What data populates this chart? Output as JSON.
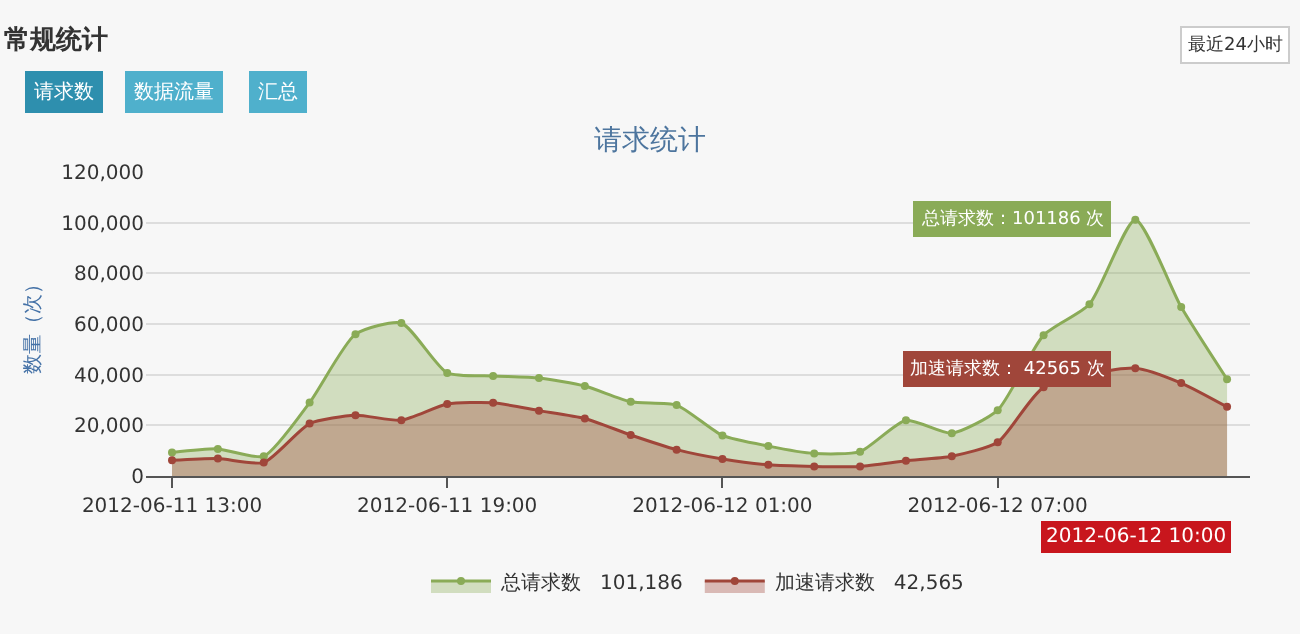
{
  "chart_data": {
    "type": "area",
    "title": "请求统计",
    "ylabel": "数量（次）",
    "x": [
      "2012-06-11T13:00",
      "2012-06-11T14:00",
      "2012-06-11T15:00",
      "2012-06-11T16:00",
      "2012-06-11T17:00",
      "2012-06-11T18:00",
      "2012-06-11T19:00",
      "2012-06-11T20:00",
      "2012-06-11T21:00",
      "2012-06-11T22:00",
      "2012-06-11T23:00",
      "2012-06-12T00:00",
      "2012-06-12T01:00",
      "2012-06-12T02:00",
      "2012-06-12T03:00",
      "2012-06-12T04:00",
      "2012-06-12T05:00",
      "2012-06-12T06:00",
      "2012-06-12T07:00",
      "2012-06-12T08:00",
      "2012-06-12T09:00",
      "2012-06-12T10:00",
      "2012-06-12T11:00",
      "2012-06-12T12:00"
    ],
    "series": [
      {
        "name": "总请求数   101,186",
        "color": "#8aab57",
        "values": [
          9300,
          10700,
          7800,
          29000,
          56000,
          60400,
          40700,
          39500,
          38700,
          35500,
          29300,
          28000,
          16000,
          11800,
          8900,
          9600,
          22000,
          16900,
          26000,
          55600,
          67800,
          101186,
          66700,
          38200
        ]
      },
      {
        "name": "加速请求数   42,565",
        "color": "#a0463a",
        "values": [
          6200,
          6900,
          5300,
          20700,
          24000,
          22000,
          28400,
          28900,
          25800,
          22700,
          16200,
          10400,
          6700,
          4400,
          3800,
          3800,
          6000,
          7800,
          13300,
          35000,
          null,
          42565,
          36700,
          27300
        ]
      }
    ],
    "xlim": [
      "2012-06-11T12:26",
      "2012-06-12T12:30"
    ],
    "xticks": [
      {
        "value": "2012-06-11T13:00",
        "label": "2012-06-11 13:00"
      },
      {
        "value": "2012-06-11T19:00",
        "label": "2012-06-11 19:00"
      },
      {
        "value": "2012-06-12T01:00",
        "label": "2012-06-12 01:00"
      },
      {
        "value": "2012-06-12T07:00",
        "label": "2012-06-12 07:00"
      }
    ],
    "ylim": [
      0,
      120000
    ],
    "yticks": [
      {
        "value": 0,
        "label": "0"
      },
      {
        "value": 20000,
        "label": "20,000"
      },
      {
        "value": 40000,
        "label": "40,000"
      },
      {
        "value": 60000,
        "label": "60,000"
      },
      {
        "value": 80000,
        "label": "80,000"
      },
      {
        "value": 100000,
        "label": "100,000"
      },
      {
        "value": 120000,
        "label": "120,000"
      }
    ],
    "grid": "y",
    "legend": "bottom",
    "marker": "circle",
    "line_style": "solid",
    "annotations": [
      "常规统计",
      "请求数",
      "数据流量",
      "汇总",
      "最近24小时",
      {
        "text": "总请求数：101186 次",
        "x": "2012-06-12T10:00",
        "y": 101186
      },
      {
        "text": "加速请求数： 42565 次",
        "x": "2012-06-12T10:00",
        "y": 42565
      },
      {
        "text": "2012-06-12 10:00",
        "x": "2012-06-12T10:00",
        "y": 0
      }
    ]
  }
}
